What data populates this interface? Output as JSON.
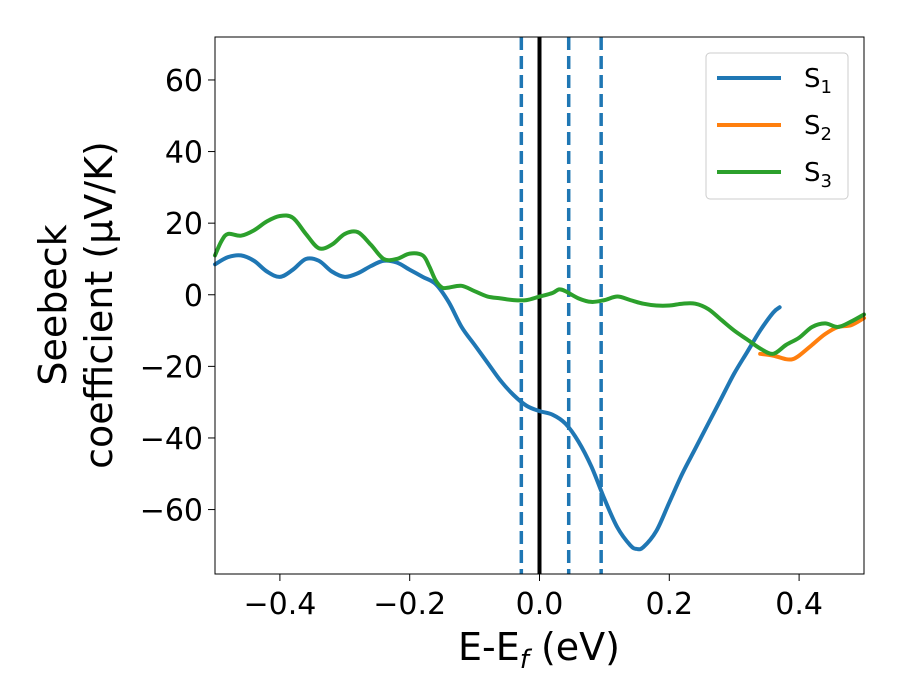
{
  "chart_data": {
    "type": "line",
    "xlabel": {
      "main": "E-E",
      "sub": "f",
      "tail": " (eV)"
    },
    "ylabel": {
      "line1": "Seebeck",
      "line2": "coefficient  (μV/K)"
    },
    "xlim": [
      -0.5,
      0.5
    ],
    "ylim": [
      -78,
      72
    ],
    "xticks": [
      -0.4,
      -0.2,
      0.0,
      0.2,
      0.4
    ],
    "xtick_labels": [
      "−0.4",
      "−0.2",
      "0.0",
      "0.2",
      "0.4"
    ],
    "yticks": [
      60,
      40,
      20,
      0,
      -20,
      -40,
      -60
    ],
    "ytick_labels": [
      "60",
      "40",
      "20",
      "0",
      "−20",
      "−40",
      "−60"
    ],
    "grid": false,
    "legend_position": "top-right",
    "vertical_lines": [
      {
        "x": -0.028,
        "style": "dashed",
        "color": "#1f77b4"
      },
      {
        "x": 0.0,
        "style": "solid",
        "color": "#000000"
      },
      {
        "x": 0.045,
        "style": "dashed",
        "color": "#1f77b4"
      },
      {
        "x": 0.095,
        "style": "dashed",
        "color": "#1f77b4"
      }
    ],
    "series": [
      {
        "name": "S",
        "sub": "1",
        "color": "#1f77b4",
        "points": [
          [
            -0.5,
            8.5
          ],
          [
            -0.48,
            10.5
          ],
          [
            -0.46,
            11
          ],
          [
            -0.44,
            9.5
          ],
          [
            -0.42,
            6.5
          ],
          [
            -0.4,
            5
          ],
          [
            -0.38,
            7
          ],
          [
            -0.36,
            10
          ],
          [
            -0.34,
            9.5
          ],
          [
            -0.32,
            6.5
          ],
          [
            -0.3,
            5
          ],
          [
            -0.28,
            6
          ],
          [
            -0.26,
            8
          ],
          [
            -0.24,
            9.5
          ],
          [
            -0.22,
            9
          ],
          [
            -0.2,
            7
          ],
          [
            -0.18,
            5
          ],
          [
            -0.16,
            3
          ],
          [
            -0.14,
            -2
          ],
          [
            -0.12,
            -9
          ],
          [
            -0.1,
            -14
          ],
          [
            -0.08,
            -19
          ],
          [
            -0.06,
            -24
          ],
          [
            -0.04,
            -28
          ],
          [
            -0.02,
            -31
          ],
          [
            0.0,
            -32.5
          ],
          [
            0.02,
            -33.5
          ],
          [
            0.04,
            -36
          ],
          [
            0.06,
            -41
          ],
          [
            0.08,
            -48
          ],
          [
            0.1,
            -57
          ],
          [
            0.12,
            -65
          ],
          [
            0.14,
            -70
          ],
          [
            0.15,
            -71
          ],
          [
            0.16,
            -70.5
          ],
          [
            0.18,
            -66
          ],
          [
            0.2,
            -58
          ],
          [
            0.22,
            -50
          ],
          [
            0.24,
            -43
          ],
          [
            0.26,
            -36
          ],
          [
            0.28,
            -29
          ],
          [
            0.3,
            -22
          ],
          [
            0.32,
            -16
          ],
          [
            0.34,
            -10
          ],
          [
            0.36,
            -5
          ],
          [
            0.37,
            -3.5
          ]
        ]
      },
      {
        "name": "S",
        "sub": "2",
        "color": "#ff7f0e",
        "points": [
          [
            0.34,
            -16.5
          ],
          [
            0.36,
            -17
          ],
          [
            0.38,
            -18
          ],
          [
            0.39,
            -18
          ],
          [
            0.4,
            -17
          ],
          [
            0.42,
            -14
          ],
          [
            0.44,
            -11
          ],
          [
            0.46,
            -9
          ],
          [
            0.48,
            -8.5
          ],
          [
            0.5,
            -6.5
          ]
        ]
      },
      {
        "name": "S",
        "sub": "3",
        "color": "#2ca02c",
        "points": [
          [
            -0.5,
            11
          ],
          [
            -0.49,
            15
          ],
          [
            -0.48,
            17
          ],
          [
            -0.46,
            16.5
          ],
          [
            -0.44,
            18
          ],
          [
            -0.42,
            20.5
          ],
          [
            -0.4,
            22
          ],
          [
            -0.38,
            21.5
          ],
          [
            -0.36,
            17
          ],
          [
            -0.34,
            13
          ],
          [
            -0.32,
            14
          ],
          [
            -0.3,
            17
          ],
          [
            -0.28,
            17.5
          ],
          [
            -0.26,
            14
          ],
          [
            -0.24,
            10
          ],
          [
            -0.22,
            10
          ],
          [
            -0.2,
            11.5
          ],
          [
            -0.18,
            11
          ],
          [
            -0.17,
            8
          ],
          [
            -0.16,
            4
          ],
          [
            -0.15,
            2
          ],
          [
            -0.14,
            2
          ],
          [
            -0.12,
            2.5
          ],
          [
            -0.1,
            1
          ],
          [
            -0.08,
            -0.5
          ],
          [
            -0.06,
            -1
          ],
          [
            -0.04,
            -1.5
          ],
          [
            -0.02,
            -1.5
          ],
          [
            0.0,
            -0.5
          ],
          [
            0.02,
            0.5
          ],
          [
            0.03,
            1.5
          ],
          [
            0.04,
            1
          ],
          [
            0.06,
            -1
          ],
          [
            0.08,
            -2
          ],
          [
            0.1,
            -1.5
          ],
          [
            0.12,
            -0.5
          ],
          [
            0.14,
            -1.5
          ],
          [
            0.16,
            -2.5
          ],
          [
            0.18,
            -3
          ],
          [
            0.2,
            -3
          ],
          [
            0.22,
            -2.5
          ],
          [
            0.24,
            -2.5
          ],
          [
            0.26,
            -4
          ],
          [
            0.28,
            -7
          ],
          [
            0.3,
            -10
          ],
          [
            0.32,
            -12.5
          ],
          [
            0.34,
            -15
          ],
          [
            0.36,
            -16.5
          ],
          [
            0.38,
            -14
          ],
          [
            0.4,
            -12
          ],
          [
            0.42,
            -9
          ],
          [
            0.44,
            -8
          ],
          [
            0.46,
            -9
          ],
          [
            0.48,
            -7.5
          ],
          [
            0.5,
            -5.5
          ]
        ]
      }
    ]
  }
}
